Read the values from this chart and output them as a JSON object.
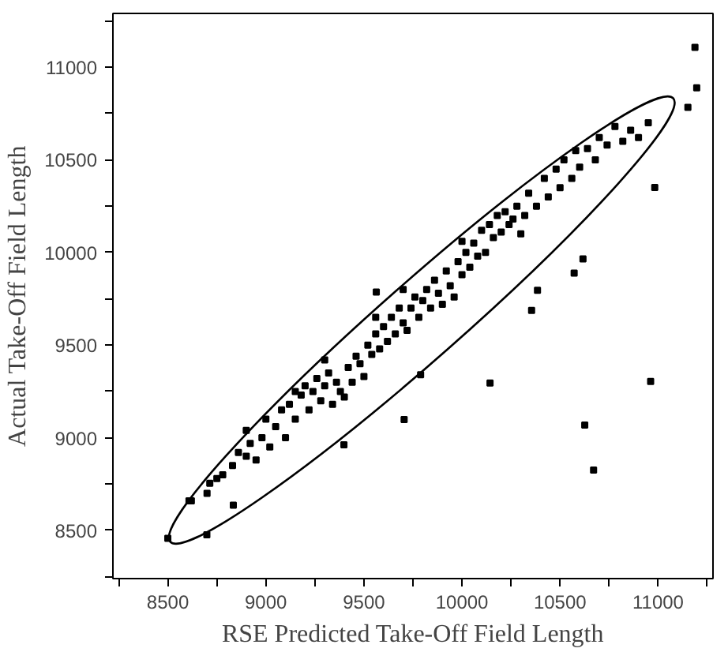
{
  "chart_data": {
    "type": "scatter",
    "xlabel": "RSE Predicted Take-Off Field Length",
    "ylabel": "Actual Take-Off Field Length",
    "xlim": [
      8220,
      11280
    ],
    "ylim": [
      8240,
      11290
    ],
    "xticks": [
      {
        "value": 8250,
        "label": null
      },
      8500,
      {
        "value": 8750,
        "label": null
      },
      9000,
      {
        "value": 9250,
        "label": null
      },
      9500,
      {
        "value": 9750,
        "label": null
      },
      10000,
      {
        "value": 10250,
        "label": null
      },
      10500,
      {
        "value": 10750,
        "label": null
      },
      11000,
      {
        "value": 11250,
        "label": null
      }
    ],
    "yticks": [
      {
        "value": 8250,
        "label": null
      },
      8500,
      {
        "value": 8750,
        "label": null
      },
      9000,
      {
        "value": 9250,
        "label": null
      },
      9500,
      {
        "value": 9750,
        "label": null
      },
      10000,
      {
        "value": 10250,
        "label": null
      },
      10500,
      {
        "value": 10750,
        "label": null
      },
      11000,
      {
        "value": 11250,
        "label": null
      }
    ],
    "grid": false,
    "marker": "square",
    "series": [
      {
        "color": "#000000",
        "x": [
          8620,
          8700,
          8750,
          8780,
          8830,
          8860,
          8900,
          8920,
          8950,
          8980,
          9000,
          9020,
          9050,
          9080,
          9100,
          9120,
          9150,
          9180,
          9200,
          9220,
          9240,
          9260,
          9280,
          9300,
          9320,
          9340,
          9360,
          9380,
          9400,
          9420,
          9440,
          9460,
          9480,
          9500,
          9520,
          9540,
          9560,
          9580,
          9600,
          9620,
          9640,
          9660,
          9680,
          9700,
          9720,
          9740,
          9760,
          9780,
          9800,
          9820,
          9840,
          9860,
          9880,
          9900,
          9920,
          9940,
          9960,
          9980,
          10000,
          10020,
          10040,
          10060,
          10080,
          10100,
          10120,
          10140,
          10160,
          10180,
          10200,
          10220,
          10240,
          10260,
          10280,
          10300,
          10320,
          10340,
          10380,
          10420,
          10440,
          10480,
          10500,
          10520,
          10560,
          10580,
          10600,
          10640,
          10680,
          10700,
          10740,
          10780,
          10820,
          10860,
          10900,
          10950,
          9300,
          9560,
          9700,
          10000,
          9150,
          8900,
          11188,
          11197,
          11152,
          10983,
          10617,
          10572,
          10385,
          10355,
          9563,
          10143,
          10962,
          10626,
          10671,
          9705,
          9398,
          8500,
          8699,
          8608,
          8834,
          8714,
          9789
        ],
        "values": [
          8660,
          8700,
          8780,
          8800,
          8850,
          8920,
          8900,
          8970,
          8880,
          9000,
          9100,
          8950,
          9060,
          9150,
          9000,
          9180,
          9100,
          9230,
          9280,
          9150,
          9250,
          9320,
          9200,
          9280,
          9350,
          9180,
          9300,
          9250,
          9220,
          9380,
          9300,
          9440,
          9400,
          9330,
          9500,
          9450,
          9560,
          9480,
          9600,
          9520,
          9650,
          9560,
          9700,
          9620,
          9580,
          9700,
          9760,
          9650,
          9740,
          9800,
          9700,
          9850,
          9780,
          9720,
          9900,
          9820,
          9760,
          9950,
          9880,
          10000,
          9920,
          10050,
          9980,
          10120,
          10000,
          10150,
          10080,
          10200,
          10110,
          10220,
          10150,
          10180,
          10250,
          10100,
          10200,
          10320,
          10250,
          10400,
          10300,
          10450,
          10350,
          10500,
          10400,
          10550,
          10460,
          10560,
          10500,
          10620,
          10580,
          10680,
          10600,
          10660,
          10620,
          10700,
          9420,
          9650,
          9800,
          10060,
          9250,
          9040,
          11107,
          10889,
          10783,
          10351,
          9965,
          9889,
          9796,
          9687,
          9786,
          9295,
          9304,
          9068,
          8826,
          9098,
          8962,
          8457,
          8476,
          8660,
          8636,
          8754,
          9340
        ]
      }
    ]
  }
}
